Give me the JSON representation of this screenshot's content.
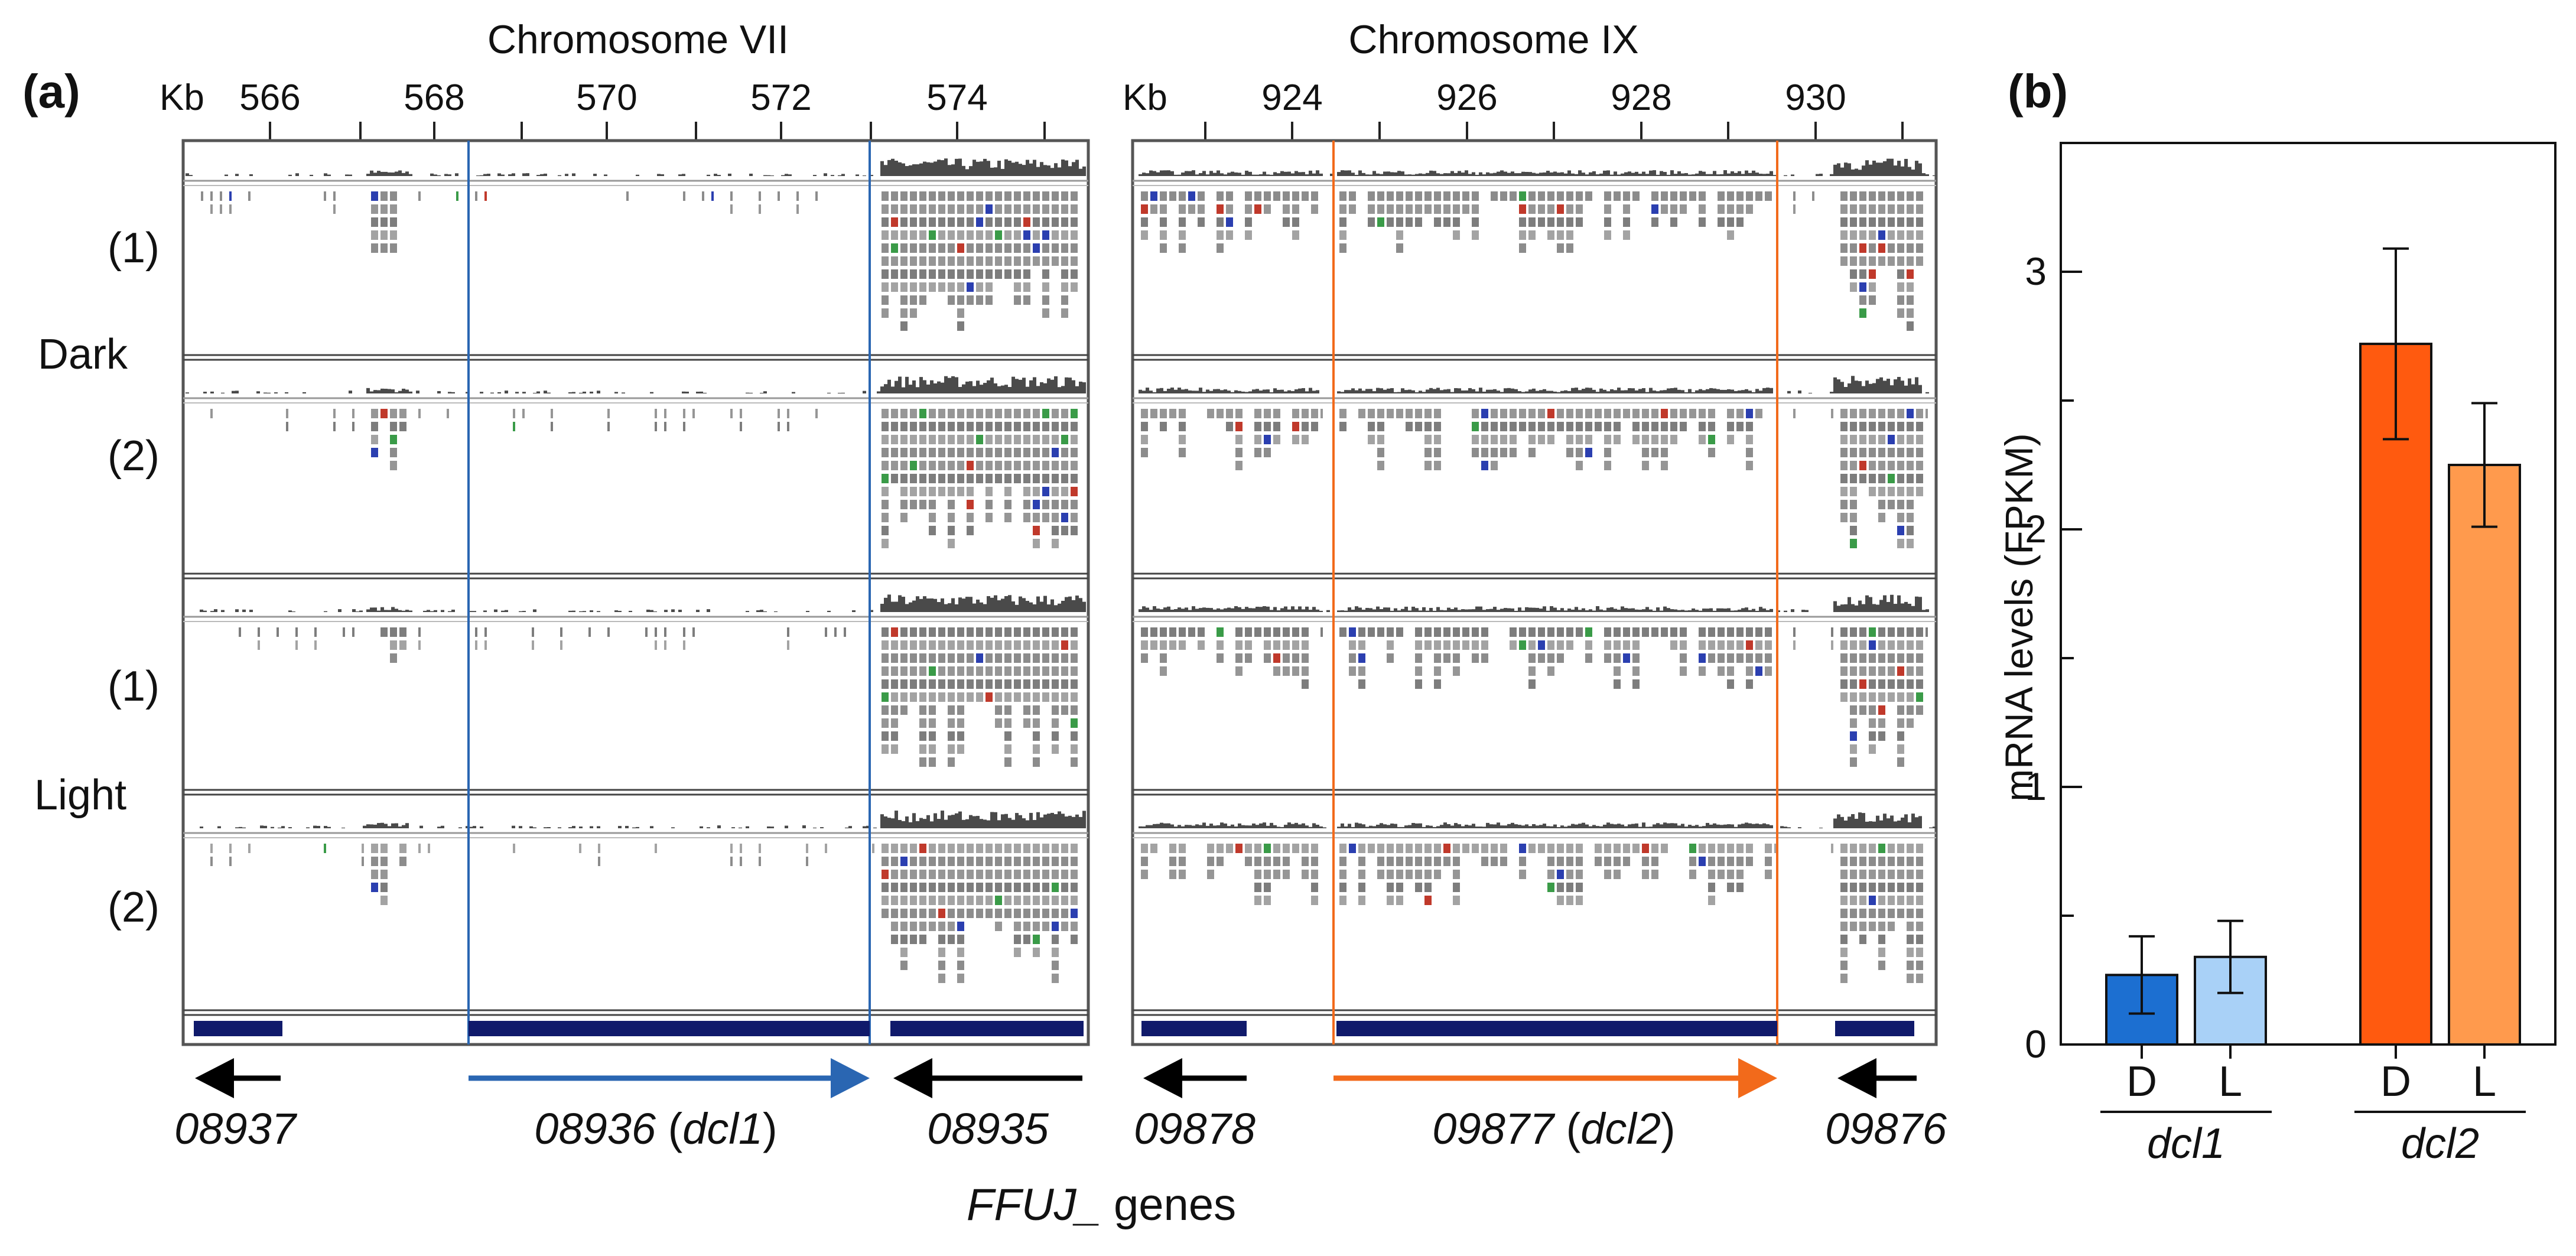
{
  "panel_a": {
    "label": "(a)",
    "genes_caption_italic": "FFUJ_",
    "genes_caption_rest": " genes",
    "row_labels": {
      "dark_1": "(1)",
      "dark_2": "(2)",
      "light_1": "(1)",
      "light_2": "(2)",
      "dark": "Dark",
      "light": "Light"
    },
    "chromosomes": [
      {
        "title": "Chromosome VII",
        "kb_label": "Kb",
        "ticks": [
          "566",
          "568",
          "570",
          "572",
          "574"
        ],
        "highlight_color": "#2a66b2",
        "genes": [
          {
            "id": "08937",
            "suffix": "",
            "direction": "left",
            "color": "#000000"
          },
          {
            "id": "08936",
            "suffix": "dcl1",
            "direction": "right",
            "color": "#2a66b2"
          },
          {
            "id": "08935",
            "suffix": "",
            "direction": "left",
            "color": "#000000"
          }
        ]
      },
      {
        "title": "Chromosome IX",
        "kb_label": "Kb",
        "ticks": [
          "924",
          "926",
          "928",
          "930"
        ],
        "highlight_color": "#f26a1b",
        "genes": [
          {
            "id": "09878",
            "suffix": "",
            "direction": "left",
            "color": "#000000"
          },
          {
            "id": "09877",
            "suffix": "dcl2",
            "direction": "right",
            "color": "#f26a1b"
          },
          {
            "id": "09876",
            "suffix": "",
            "direction": "left",
            "color": "#000000"
          }
        ]
      }
    ]
  },
  "chart_data": {
    "type": "bar",
    "panel_label": "(b)",
    "title": "",
    "xlabel": "",
    "ylabel": "mRNA levels (FPKM)",
    "ylim": [
      0,
      3.5
    ],
    "yticks": [
      0,
      1,
      2,
      3
    ],
    "categories": [
      "D",
      "L",
      "D",
      "L"
    ],
    "groups": [
      {
        "name": "dcl1",
        "categories": [
          "D",
          "L"
        ]
      },
      {
        "name": "dcl2",
        "categories": [
          "D",
          "L"
        ]
      }
    ],
    "values": [
      0.27,
      0.34,
      2.72,
      2.25
    ],
    "errors": [
      0.15,
      0.14,
      0.37,
      0.24
    ],
    "colors": [
      "#1c6fd1",
      "#a9d1f7",
      "#ff5a0f",
      "#ff9a4d"
    ],
    "grid": false,
    "legend": "none"
  }
}
